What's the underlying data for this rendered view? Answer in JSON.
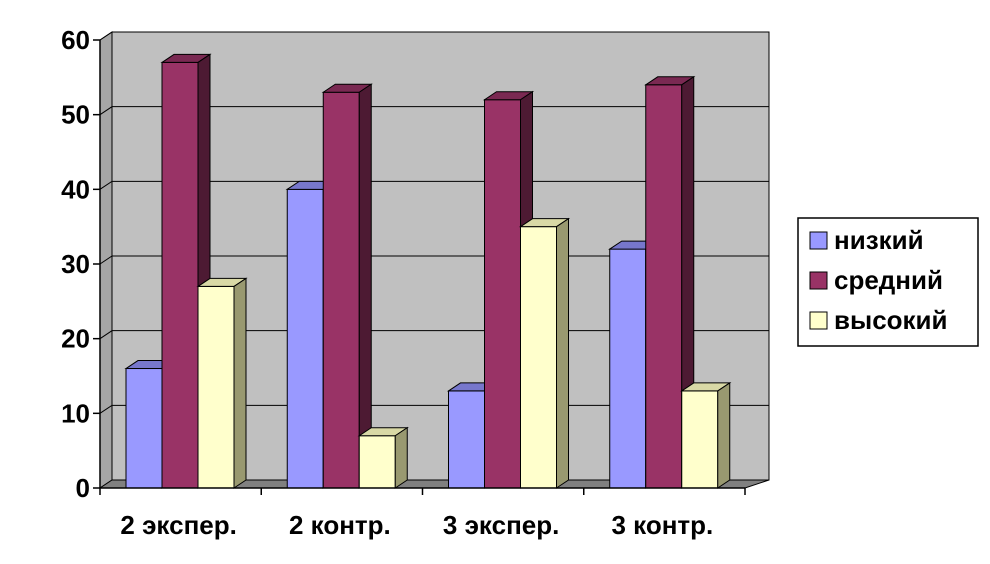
{
  "chart_data": {
    "type": "bar",
    "categories": [
      "2 экспер.",
      "2 контр.",
      "3 экспер.",
      "3 контр."
    ],
    "series": [
      {
        "name": "низкий",
        "values": [
          16,
          40,
          13,
          32
        ],
        "color": "#9999ff",
        "top_color": "#7777cc",
        "side_color": "#5a5a99"
      },
      {
        "name": "средний",
        "values": [
          57,
          53,
          52,
          54
        ],
        "color": "#993366",
        "top_color": "#7a2952",
        "side_color": "#4d1a33"
      },
      {
        "name": "высокий",
        "values": [
          27,
          7,
          35,
          13
        ],
        "color": "#ffffcc",
        "top_color": "#d9d9a6",
        "side_color": "#999970"
      }
    ],
    "ylim": [
      0,
      60
    ],
    "yticks": [
      "0",
      "10",
      "20",
      "30",
      "40",
      "50",
      "60"
    ],
    "grid": true,
    "legend": "right",
    "wall_color": "#c0c0c0",
    "floor_color": "#808080"
  }
}
